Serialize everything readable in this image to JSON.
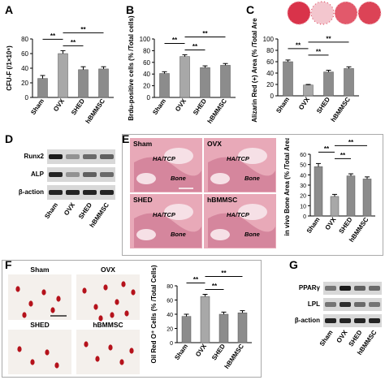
{
  "panels": {
    "A": "A",
    "B": "B",
    "C": "C",
    "D": "D",
    "E": "E",
    "F": "F",
    "G": "G"
  },
  "colors": {
    "bar": "#8c8c8c",
    "bar_highlight": "#a8a8a8",
    "axis": "#000000",
    "blot_band": "#2a2a2a",
    "tissue_pink": "#e8a9b8",
    "tissue_dark": "#c46a86",
    "oil_red": "#b5121b"
  },
  "icons": {
    "sig": "significance-bracket",
    "scale": "scale-bar"
  },
  "chart_data": [
    {
      "id": "A",
      "type": "bar",
      "categories": [
        "Sham",
        "OVX",
        "SHED",
        "hBMMSC"
      ],
      "values": [
        26,
        60,
        38,
        39
      ],
      "errors": [
        4,
        4,
        4,
        3
      ],
      "ylabel": "CFU-F  (/1×10⁶)",
      "ylim": [
        0,
        80
      ],
      "yticks": [
        "0",
        "20",
        "40",
        "60",
        "80"
      ],
      "significance": [
        {
          "from": 0,
          "to": 1,
          "label": "**"
        },
        {
          "from": 1,
          "to": 2,
          "label": "**"
        },
        {
          "from": 1,
          "to": 3,
          "label": "**"
        }
      ]
    },
    {
      "id": "B",
      "type": "bar",
      "categories": [
        "Sham",
        "OVX",
        "SHED",
        "hBMMSC"
      ],
      "values": [
        41,
        70,
        51,
        55
      ],
      "errors": [
        3,
        3,
        3,
        3
      ],
      "ylabel": "Brdu-positive cells (% /Total cells)",
      "ylim": [
        0,
        100
      ],
      "yticks": [
        "0",
        "20",
        "40",
        "60",
        "80",
        "100"
      ],
      "significance": [
        {
          "from": 0,
          "to": 1,
          "label": "**"
        },
        {
          "from": 1,
          "to": 2,
          "label": "**"
        },
        {
          "from": 1,
          "to": 3,
          "label": "**"
        }
      ]
    },
    {
      "id": "C",
      "type": "bar",
      "categories": [
        "Sham",
        "OVX",
        "SHED",
        "hBMMSC"
      ],
      "values": [
        60,
        19,
        42,
        48
      ],
      "errors": [
        3,
        1,
        3,
        3
      ],
      "ylabel": "Alizarin Red (+) Area (% /Total Area)",
      "ylim": [
        0,
        100
      ],
      "yticks": [
        "0",
        "20",
        "40",
        "60",
        "80",
        "100"
      ],
      "significance": [
        {
          "from": 0,
          "to": 1,
          "label": "**"
        },
        {
          "from": 1,
          "to": 2,
          "label": "**"
        },
        {
          "from": 1,
          "to": 3,
          "label": "**"
        }
      ]
    },
    {
      "id": "E",
      "type": "bar",
      "categories": [
        "Sham",
        "OVX",
        "SHED",
        "hBMMSC"
      ],
      "values": [
        48,
        19,
        39,
        36
      ],
      "errors": [
        3,
        2,
        2,
        2
      ],
      "ylabel": "in vivo Bone Area (% /Total Area)",
      "ylim": [
        0,
        60
      ],
      "yticks": [
        "0",
        "10",
        "20",
        "30",
        "40",
        "50",
        "60"
      ],
      "significance": [
        {
          "from": 0,
          "to": 1,
          "label": "**"
        },
        {
          "from": 1,
          "to": 2,
          "label": "**"
        },
        {
          "from": 1,
          "to": 3,
          "label": "**"
        }
      ]
    },
    {
      "id": "F",
      "type": "bar",
      "categories": [
        "Sham",
        "OVX",
        "SHED",
        "hBMMSC"
      ],
      "values": [
        37,
        65,
        40,
        42
      ],
      "errors": [
        3,
        3,
        3,
        3
      ],
      "ylabel": "Oil Red O⁺ Cells (% /Total Cells)",
      "ylim": [
        0,
        80
      ],
      "yticks": [
        "0",
        "20",
        "40",
        "60",
        "80"
      ],
      "significance": [
        {
          "from": 0,
          "to": 1,
          "label": "**"
        },
        {
          "from": 1,
          "to": 2,
          "label": "**"
        },
        {
          "from": 1,
          "to": 3,
          "label": "**"
        }
      ]
    }
  ],
  "blotD": {
    "rows": [
      "Runx2",
      "ALP",
      "β-action"
    ],
    "lanes": [
      "Sham",
      "OVX",
      "SHED",
      "hBMMSC"
    ],
    "intensity": [
      [
        0.95,
        0.35,
        0.55,
        0.6
      ],
      [
        0.9,
        0.35,
        0.6,
        0.55
      ],
      [
        0.9,
        0.9,
        0.9,
        0.9
      ]
    ]
  },
  "blotG": {
    "rows": [
      "PPARγ",
      "LPL",
      "β-action"
    ],
    "lanes": [
      "Sham",
      "OVX",
      "SHED",
      "hBMMSC"
    ],
    "intensity": [
      [
        0.5,
        0.95,
        0.6,
        0.55
      ],
      [
        0.5,
        0.85,
        0.55,
        0.5
      ],
      [
        0.9,
        0.9,
        0.9,
        0.9
      ]
    ]
  },
  "histE": {
    "labels": [
      {
        "group": "Sham",
        "tags": [
          "HA/TCP",
          "Bone"
        ]
      },
      {
        "group": "OVX",
        "tags": [
          "HA/TCP",
          "Bone"
        ]
      },
      {
        "group": "SHED",
        "tags": [
          "HA/TCP",
          "Bone"
        ]
      },
      {
        "group": "hBMMSC",
        "tags": [
          "HA/TCP",
          "Bone"
        ]
      }
    ]
  },
  "imgF": {
    "labels": [
      "Sham",
      "OVX",
      "SHED",
      "hBMMSC"
    ]
  }
}
